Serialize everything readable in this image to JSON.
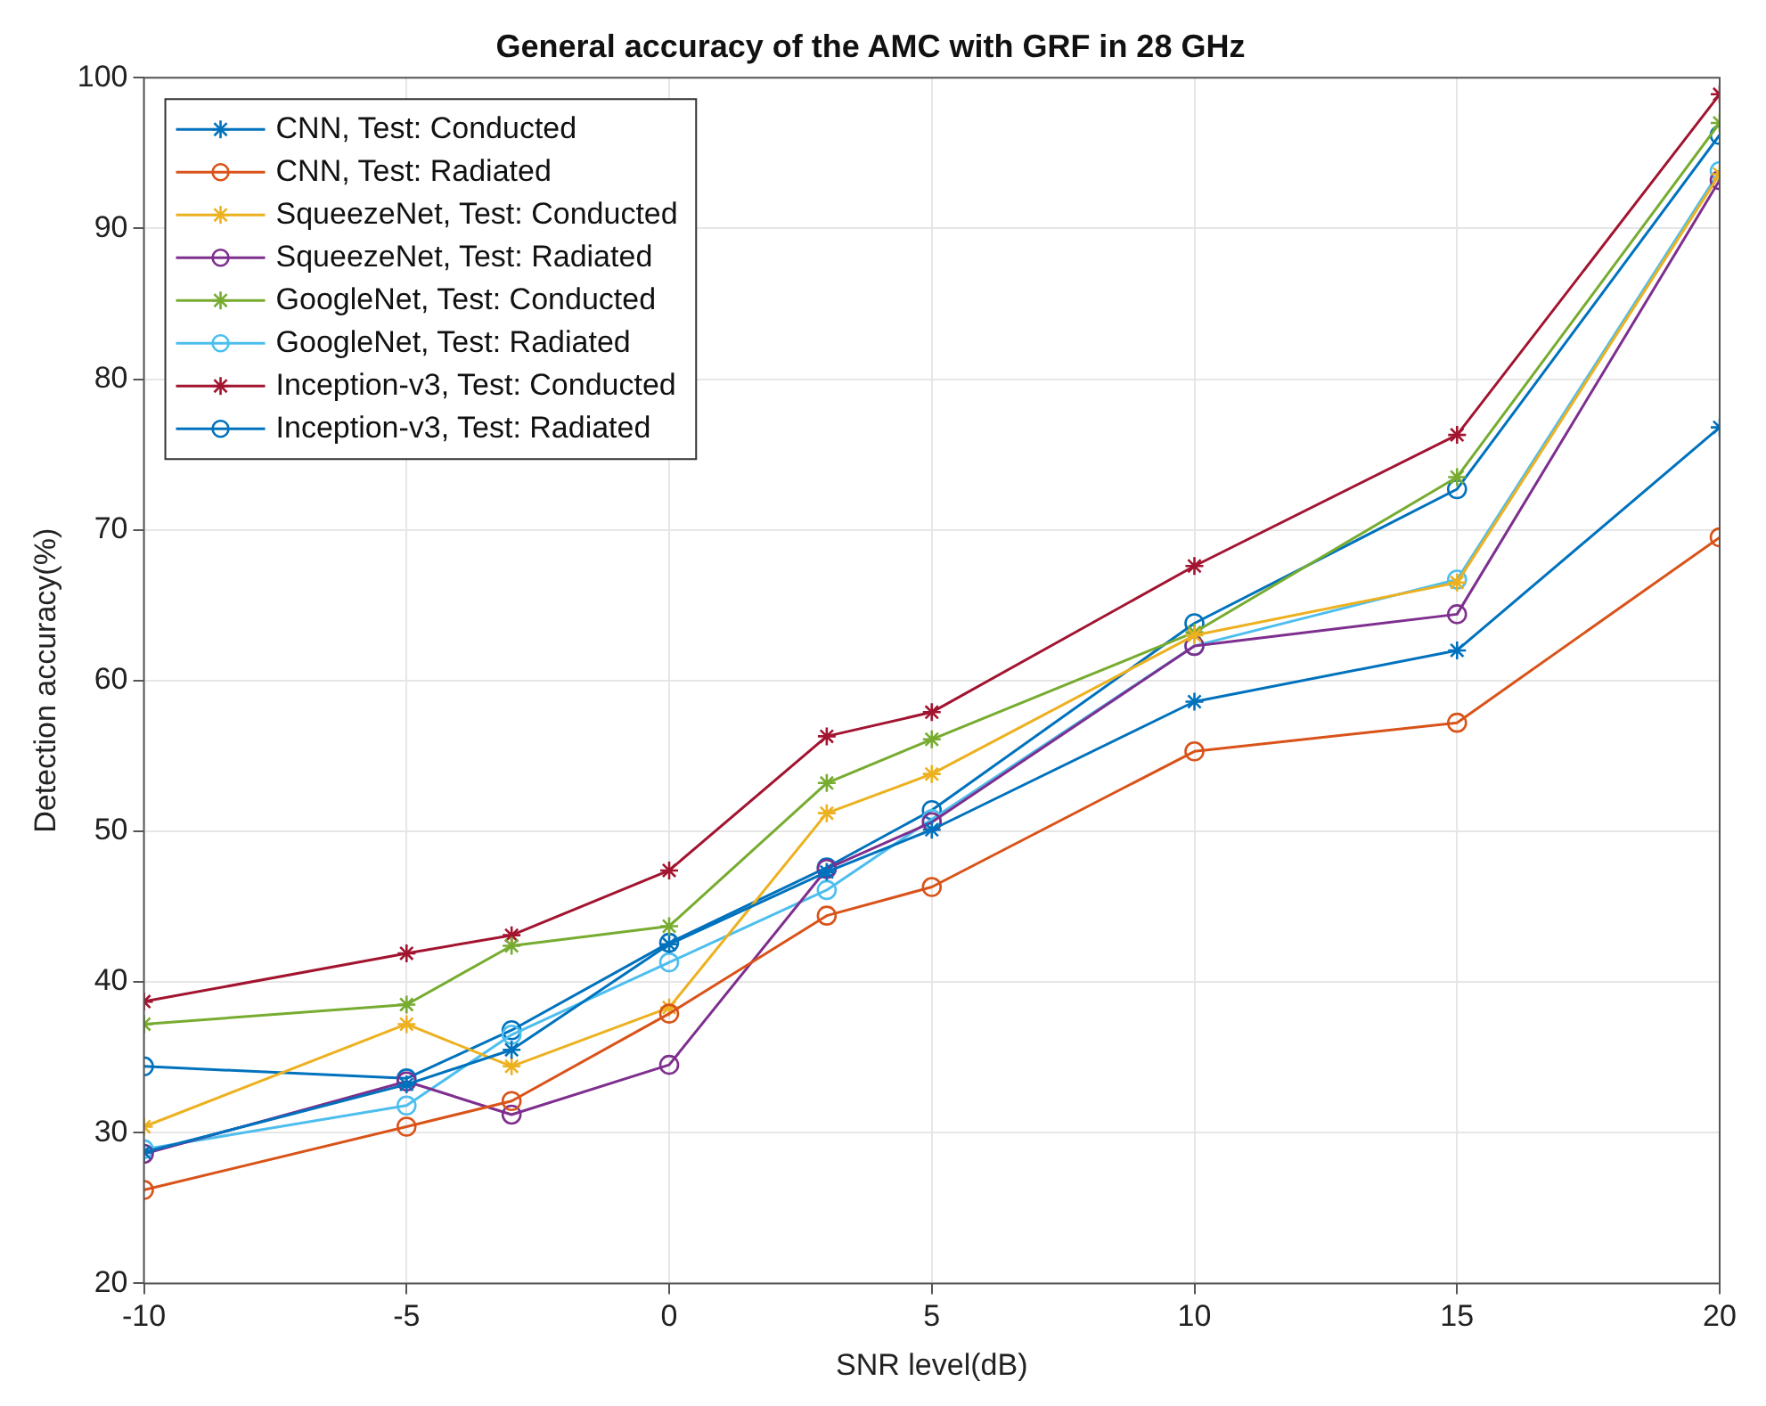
{
  "chart_data": {
    "type": "line",
    "title": "General accuracy of the AMC with GRF in 28 GHz",
    "xlabel": "SNR level(dB)",
    "ylabel": "Detection accuracy(%)",
    "x": [
      -10,
      -5,
      -3,
      0,
      3,
      5,
      10,
      15,
      20
    ],
    "xlim": [
      -10,
      20
    ],
    "xticks": [
      -10,
      -5,
      0,
      5,
      10,
      15,
      20
    ],
    "ylim": [
      20,
      100
    ],
    "yticks": [
      20,
      30,
      40,
      50,
      60,
      70,
      80,
      90,
      100
    ],
    "grid": true,
    "legend": "top left",
    "line_style": "solid",
    "series": [
      {
        "name": "CNN, Test: Conducted",
        "color": "#0072bd",
        "marker": "cross",
        "values": [
          28.7,
          33.2,
          35.5,
          42.5,
          47.3,
          50.1,
          58.6,
          62.0,
          76.8
        ]
      },
      {
        "name": "CNN, Test: Radiated",
        "color": "#d95319",
        "marker": "circle",
        "values": [
          26.2,
          30.4,
          32.1,
          37.9,
          44.4,
          46.3,
          55.3,
          57.2,
          69.5
        ]
      },
      {
        "name": "SqueezeNet, Test: Conducted",
        "color": "#edb120",
        "marker": "cross",
        "values": [
          30.4,
          37.2,
          34.4,
          38.3,
          51.2,
          53.8,
          63.0,
          66.5,
          93.6
        ]
      },
      {
        "name": "SqueezeNet, Test: Radiated",
        "color": "#7e2f8e",
        "marker": "circle",
        "values": [
          28.6,
          33.4,
          31.2,
          34.5,
          47.5,
          50.6,
          62.3,
          64.4,
          93.2
        ]
      },
      {
        "name": "GoogleNet, Test: Conducted",
        "color": "#77ac30",
        "marker": "cross",
        "values": [
          37.2,
          38.5,
          42.4,
          43.7,
          53.2,
          56.1,
          63.2,
          73.5,
          97.0
        ]
      },
      {
        "name": "GoogleNet, Test: Radiated",
        "color": "#4dbeee",
        "marker": "circle",
        "values": [
          28.9,
          31.8,
          36.5,
          41.3,
          46.1,
          50.8,
          62.3,
          66.7,
          93.8
        ]
      },
      {
        "name": "Inception-v3, Test: Conducted",
        "color": "#a2142f",
        "marker": "cross",
        "values": [
          38.7,
          41.9,
          43.1,
          47.4,
          56.3,
          57.9,
          67.6,
          76.3,
          98.9
        ]
      },
      {
        "name": "Inception-v3, Test: Radiated",
        "color": "#0072bd",
        "marker": "circle",
        "values": [
          34.4,
          33.6,
          36.8,
          42.6,
          47.6,
          51.4,
          63.8,
          72.7,
          96.2
        ]
      }
    ]
  }
}
